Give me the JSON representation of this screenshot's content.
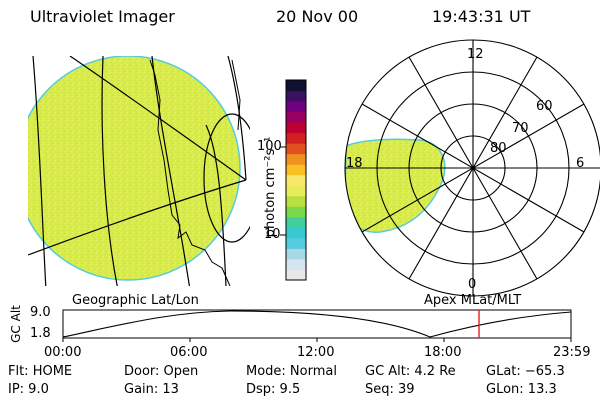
{
  "header": {
    "title": "Ultraviolet Imager",
    "date": "20 Nov 00",
    "time": "19:43:31 UT"
  },
  "map_left": {
    "label": "Geographic Lat/Lon"
  },
  "colorbar": {
    "unit_label": "photon cm⁻²s⁻¹",
    "tick_100": "100",
    "tick_10": "10",
    "colors": [
      "#e8e8e8",
      "#d5e4ee",
      "#a8d8e6",
      "#55ccdd",
      "#38c8d0",
      "#40cf9a",
      "#7ad84a",
      "#b8e040",
      "#e6ec5a",
      "#f7e86a",
      "#f8c020",
      "#f09020",
      "#e05020",
      "#d02020",
      "#c00030",
      "#9a0060",
      "#700080",
      "#3a1060",
      "#101030"
    ]
  },
  "polar_plot": {
    "label": "Apex MLat/MLT",
    "mlt_12": "12",
    "mlt_18": "18",
    "mlt_6": "6",
    "mlt_0": "0",
    "lat_60": "60",
    "lat_70": "70",
    "lat_80": "80"
  },
  "altitude_plot": {
    "axis_title": "GC Alt",
    "y_max": "9.0",
    "y_min": "1.8",
    "x_ticks": [
      "00:00",
      "06:00",
      "12:00",
      "18:00",
      "23:59"
    ],
    "current_time_marker_color": "#e02020"
  },
  "status": {
    "flt": "Flt: HOME",
    "ip": "IP:  9.0",
    "door": "Door: Open",
    "gain": "Gain: 13",
    "mode": "Mode: Normal",
    "dsp": "Dsp:     9.5",
    "gc_alt": "GC Alt: 4.2 Re",
    "seq": "Seq: 39",
    "glat": "GLat: −65.3",
    "glon": "GLon:  13.3"
  },
  "colors": {
    "fill": "#d7ec4a",
    "outline": "#55ccdd"
  }
}
